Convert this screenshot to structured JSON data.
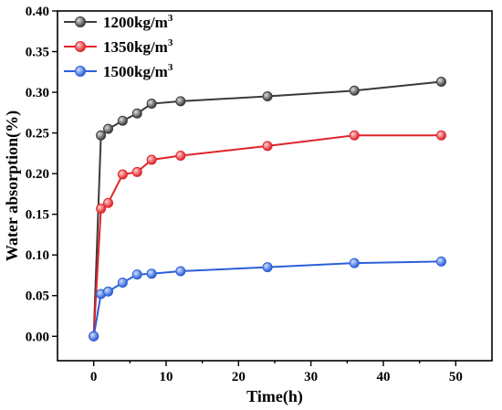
{
  "chart_data": {
    "type": "line",
    "xlabel": "Time(h)",
    "ylabel": "Water absorption(%)",
    "xlim": [
      -5,
      55
    ],
    "ylim": [
      -0.03,
      0.4
    ],
    "xticks": [
      0,
      10,
      20,
      30,
      40,
      50
    ],
    "yticks": [
      0.0,
      0.05,
      0.1,
      0.15,
      0.2,
      0.25,
      0.3,
      0.35,
      0.4
    ],
    "xtick_labels": [
      "0",
      "10",
      "20",
      "30",
      "40",
      "50"
    ],
    "ytick_labels": [
      "0.00",
      "0.05",
      "0.10",
      "0.15",
      "0.20",
      "0.25",
      "0.30",
      "0.35",
      "0.40"
    ],
    "x": [
      0,
      1,
      2,
      4,
      6,
      8,
      12,
      24,
      36,
      48
    ],
    "legend_position": "top-left",
    "series": [
      {
        "name": "1200kg/m",
        "superscript": "3",
        "color": "#3a3a3a",
        "values": [
          0.0,
          0.247,
          0.255,
          0.265,
          0.274,
          0.286,
          0.289,
          0.295,
          0.302,
          0.313
        ]
      },
      {
        "name": "1350kg/m",
        "superscript": "3",
        "color": "#e0242a",
        "values": [
          0.0,
          0.157,
          0.164,
          0.199,
          0.202,
          0.217,
          0.222,
          0.234,
          0.247,
          0.247
        ]
      },
      {
        "name": "1500kg/m",
        "superscript": "3",
        "color": "#2b5fd9",
        "values": [
          0.0,
          0.052,
          0.055,
          0.066,
          0.076,
          0.077,
          0.08,
          0.085,
          0.09,
          0.092
        ]
      }
    ]
  }
}
